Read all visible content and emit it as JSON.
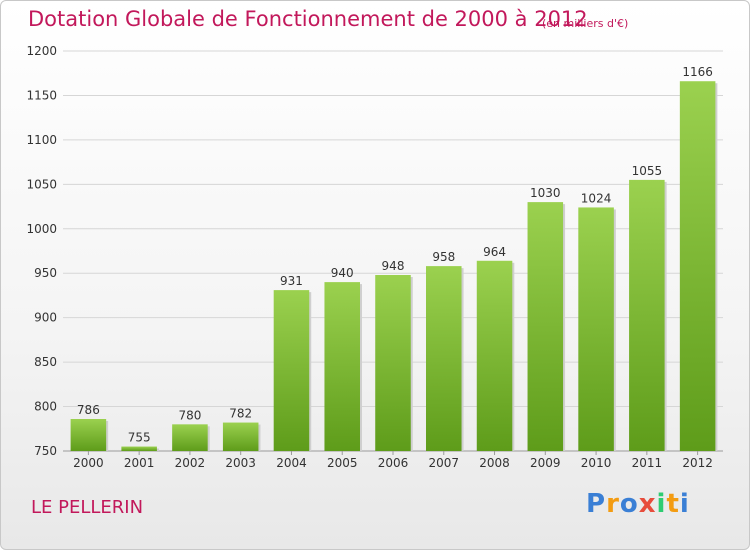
{
  "chart_data": {
    "type": "bar",
    "title": "Dotation Globale de Fonctionnement de 2000 à 2012",
    "subtitle": "(en milliers d'€)",
    "categories": [
      "2000",
      "2001",
      "2002",
      "2003",
      "2004",
      "2005",
      "2006",
      "2007",
      "2008",
      "2009",
      "2010",
      "2011",
      "2012"
    ],
    "values": [
      786,
      755,
      780,
      782,
      931,
      940,
      948,
      958,
      964,
      1030,
      1024,
      1055,
      1166
    ],
    "ylim": [
      750,
      1200
    ],
    "yticks": [
      750,
      800,
      850,
      900,
      950,
      1000,
      1050,
      1100,
      1150,
      1200
    ],
    "grid": true,
    "xlabel": "",
    "ylabel": "",
    "colors": {
      "bar_light": "#9bd14f",
      "bar_dark": "#5e9c1a",
      "title": "#c2185b"
    }
  },
  "footer": {
    "commune": "LE PELLERIN",
    "brand_letters": [
      "P",
      "r",
      "o",
      "x",
      "i",
      "t",
      "i"
    ],
    "brand_colors": [
      "#3a7fd5",
      "#f39c12",
      "#3a7fd5",
      "#e74c3c",
      "#2ecc71",
      "#f39c12",
      "#3a7fd5"
    ]
  }
}
